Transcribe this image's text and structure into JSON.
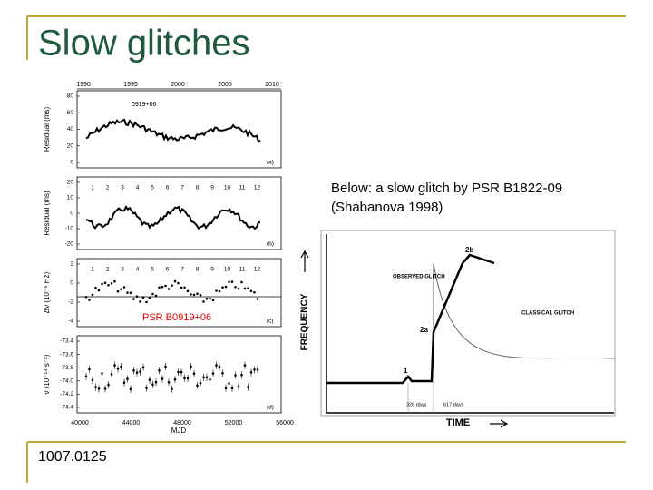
{
  "title": "Slow glitches",
  "caption": [
    "Below: a slow glitch by PSR B1822-09",
    "(Shabanova 1998)"
  ],
  "footer": "1007.0125",
  "left_figure": {
    "top_axis_labels": [
      "1990",
      "1995",
      "2000",
      "2005",
      "2010"
    ],
    "pulsar_label": "0919+06",
    "panels": [
      {
        "ylabel": "Residual (ms)",
        "yticks": [
          "80",
          "60",
          "40",
          "20",
          "0"
        ],
        "tag": "(a)"
      },
      {
        "ylabel": "Residual (ms)",
        "yticks": [
          "20",
          "10",
          "0",
          "-10",
          "-20"
        ],
        "tag": "(b)"
      },
      {
        "ylabel": "Δν (10⁻⁹ Hz)",
        "yticks": [
          "2",
          "0",
          "-2",
          "-4"
        ],
        "tag": "(c)"
      },
      {
        "ylabel": "ν̇ (10⁻¹⁴ s⁻²)",
        "yticks": [
          "-73.4",
          "-73.6",
          "-73.8",
          "-74.0",
          "-74.2",
          "-74.4"
        ],
        "tag": "(d)"
      }
    ],
    "glitch_numbers": [
      "1",
      "2",
      "3",
      "4",
      "5",
      "6",
      "7",
      "8",
      "9",
      "10",
      "11",
      "12"
    ],
    "overlay_label": "PSR B0919+06",
    "xticks": [
      "40000",
      "44000",
      "48000",
      "52000",
      "56000"
    ],
    "xlabel": "MJD"
  },
  "right_figure": {
    "ylabel": "FREQUENCY",
    "xlabel": "TIME",
    "observed": "OBSERVED GLITCH",
    "classical": "CLASSICAL GLITCH",
    "point_labels": [
      "1",
      "2a",
      "2b"
    ],
    "day_labels": [
      "326 days",
      "617 days"
    ]
  }
}
